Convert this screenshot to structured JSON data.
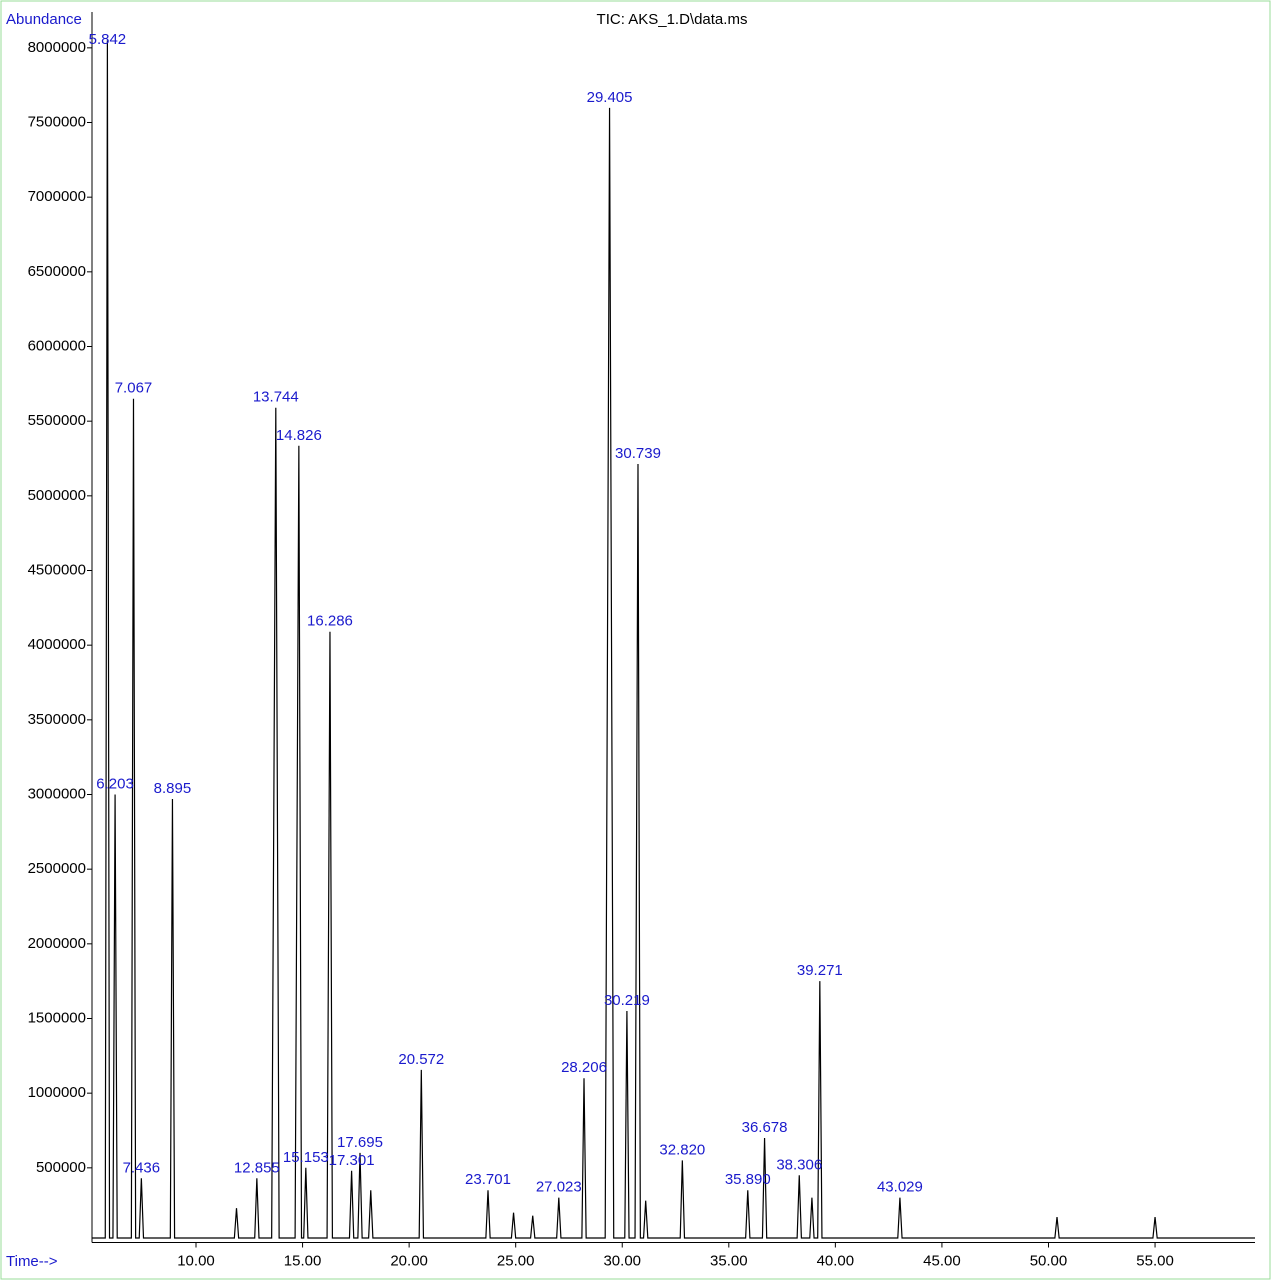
{
  "chart_data": {
    "type": "line",
    "title": "TIC: AKS_1.D\\data.ms",
    "ylabel": "Abundance",
    "xlabel": "Time-->",
    "color": "#000000",
    "label_color": "#1a1acc",
    "xlim": [
      5.12,
      59.69
    ],
    "ylim": [
      0,
      8240000
    ],
    "xticks": [
      {
        "value": 10,
        "label": "10.00"
      },
      {
        "value": 15,
        "label": "15.00"
      },
      {
        "value": 20,
        "label": "20.00"
      },
      {
        "value": 25,
        "label": "25.00"
      },
      {
        "value": 30,
        "label": "30.00"
      },
      {
        "value": 35,
        "label": "35.00"
      },
      {
        "value": 40,
        "label": "40.00"
      },
      {
        "value": 45,
        "label": "45.00"
      },
      {
        "value": 50,
        "label": "50.00"
      },
      {
        "value": 55,
        "label": "55.00"
      }
    ],
    "yticks": [
      500000,
      1000000,
      1500000,
      2000000,
      2500000,
      3000000,
      3500000,
      4000000,
      4500000,
      5000000,
      5500000,
      6000000,
      6500000,
      7000000,
      7500000,
      8000000
    ],
    "x": [
      5.12,
      5.742,
      5.842,
      5.942,
      6.103,
      6.203,
      6.303,
      6.967,
      7.067,
      7.167,
      7.336,
      7.436,
      7.536,
      8.795,
      8.895,
      8.995,
      11.8,
      11.9,
      12.0,
      12.755,
      12.855,
      12.955,
      13.55,
      13.744,
      13.9,
      14.65,
      14.826,
      14.95,
      15.053,
      15.153,
      15.253,
      16.15,
      16.286,
      16.4,
      17.201,
      17.301,
      17.401,
      17.595,
      17.695,
      17.795,
      18.1,
      18.2,
      18.3,
      20.472,
      20.572,
      20.672,
      23.601,
      23.701,
      23.801,
      24.8,
      24.9,
      25.0,
      25.7,
      25.8,
      25.9,
      26.923,
      27.023,
      27.123,
      28.106,
      28.206,
      28.306,
      29.2,
      29.405,
      29.6,
      30.119,
      30.219,
      30.319,
      30.6,
      30.739,
      30.85,
      31.0,
      31.1,
      31.2,
      32.72,
      32.82,
      32.92,
      35.79,
      35.89,
      35.99,
      36.578,
      36.678,
      36.778,
      38.206,
      38.306,
      38.406,
      38.8,
      38.9,
      39.0,
      39.171,
      39.271,
      39.371,
      42.929,
      43.029,
      43.129,
      50.3,
      50.4,
      50.5,
      54.9,
      55.0,
      55.1,
      59.69
    ],
    "values": [
      30000,
      30000,
      8050000,
      30000,
      30000,
      3000000,
      30000,
      30000,
      5650000,
      30000,
      30000,
      430000,
      30000,
      30000,
      2970000,
      30000,
      30000,
      230000,
      30000,
      30000,
      430000,
      30000,
      30000,
      5590000,
      30000,
      30000,
      5335000,
      30000,
      30000,
      500000,
      30000,
      30000,
      4090000,
      30000,
      30000,
      480000,
      30000,
      30000,
      600000,
      30000,
      30000,
      350000,
      30000,
      30000,
      1156000,
      30000,
      30000,
      350000,
      30000,
      30000,
      200000,
      30000,
      30000,
      180000,
      30000,
      30000,
      300000,
      30000,
      30000,
      1100000,
      30000,
      30000,
      7598000,
      30000,
      30000,
      1550000,
      30000,
      30000,
      5213000,
      30000,
      30000,
      280000,
      30000,
      30000,
      550000,
      30000,
      30000,
      350000,
      30000,
      30000,
      700000,
      30000,
      30000,
      450000,
      30000,
      30000,
      300000,
      30000,
      30000,
      1750000,
      30000,
      30000,
      300000,
      30000,
      30000,
      170000,
      30000,
      30000,
      170000,
      30000,
      30000
    ],
    "peaks": [
      {
        "x": 5.842,
        "label": "5.842"
      },
      {
        "x": 6.203,
        "label": "6.203"
      },
      {
        "x": 7.067,
        "label": "7.067"
      },
      {
        "x": 7.436,
        "label": "7.436"
      },
      {
        "x": 8.895,
        "label": "8.895"
      },
      {
        "x": 12.855,
        "label": "12.855"
      },
      {
        "x": 13.744,
        "label": "13.744"
      },
      {
        "x": 14.826,
        "label": "14.826"
      },
      {
        "x": 15.153,
        "label": "15.153"
      },
      {
        "x": 16.286,
        "label": "16.286"
      },
      {
        "x": 17.301,
        "label": "17.301"
      },
      {
        "x": 17.695,
        "label": "17.695"
      },
      {
        "x": 20.572,
        "label": "20.572"
      },
      {
        "x": 23.701,
        "label": "23.701"
      },
      {
        "x": 27.023,
        "label": "27.023"
      },
      {
        "x": 28.206,
        "label": "28.206"
      },
      {
        "x": 29.405,
        "label": "29.405"
      },
      {
        "x": 30.219,
        "label": "30.219"
      },
      {
        "x": 30.739,
        "label": "30.739"
      },
      {
        "x": 32.82,
        "label": "32.820"
      },
      {
        "x": 35.89,
        "label": "35.890"
      },
      {
        "x": 36.678,
        "label": "36.678"
      },
      {
        "x": 38.306,
        "label": "38.306"
      },
      {
        "x": 39.271,
        "label": "39.271"
      },
      {
        "x": 43.029,
        "label": "43.029"
      }
    ]
  }
}
